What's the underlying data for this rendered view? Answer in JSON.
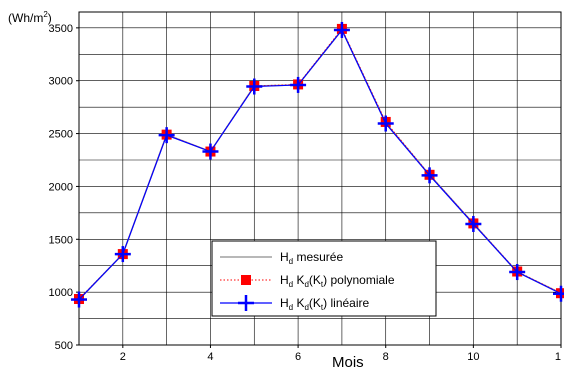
{
  "chart_data": {
    "type": "line",
    "ylabel_prefix": "(Wh/m",
    "ylabel_sup": "2",
    "ylabel_suffix": ")",
    "xlabel": "Mois",
    "xlim": [
      1,
      12
    ],
    "ylim": [
      500,
      3650
    ],
    "x_ticks": [
      "2",
      "4",
      "6",
      "8",
      "10",
      "1"
    ],
    "y_ticks": [
      "500",
      "1000",
      "1500",
      "2000",
      "2500",
      "3000",
      "3500"
    ],
    "grid": true,
    "legend_position": "bottom-center",
    "x": [
      1,
      2,
      3,
      4,
      5,
      6,
      7,
      8,
      9,
      10,
      11,
      12
    ],
    "series": [
      {
        "name_main": "H",
        "name_sub": "d",
        "name_rest": " mesurée",
        "color": "#a0a0a0",
        "values": [
          930,
          1360,
          2490,
          2330,
          2950,
          2960,
          3480,
          2600,
          2110,
          1650,
          1190,
          990
        ]
      },
      {
        "name_main": "H",
        "name_sub": "d",
        "name_mid": " K",
        "name_sub2": "d",
        "name_mid2": "(K",
        "name_sub3": "t",
        "name_rest": ") polynomiale",
        "color": "#ff0000",
        "values": [
          935,
          1360,
          2490,
          2330,
          2950,
          2965,
          3490,
          2610,
          2110,
          1650,
          1195,
          990
        ]
      },
      {
        "name_main": "H",
        "name_sub": "d",
        "name_mid": " K",
        "name_sub2": "d",
        "name_mid2": "(K",
        "name_sub3": "t",
        "name_rest": ") linéaire",
        "color": "#0000ff",
        "values": [
          930,
          1360,
          2485,
          2330,
          2945,
          2960,
          3480,
          2595,
          2105,
          1645,
          1190,
          985
        ]
      }
    ]
  }
}
